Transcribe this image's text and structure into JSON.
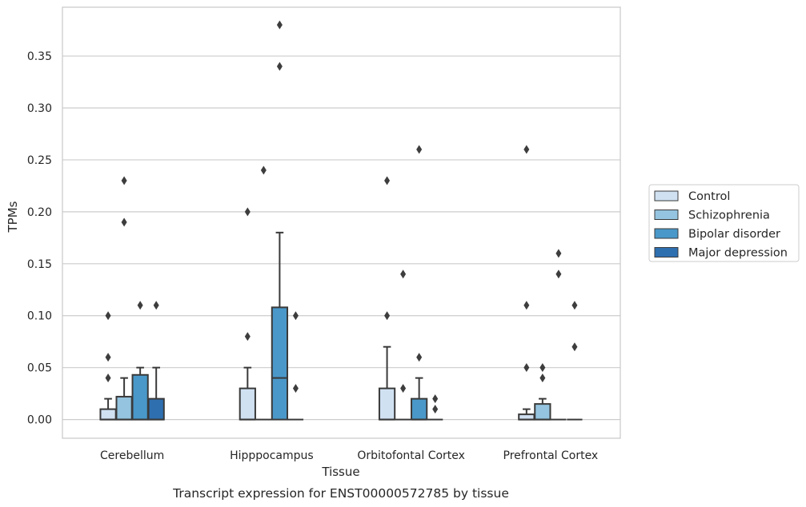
{
  "chart_data": {
    "type": "box",
    "xlabel": "Tissue",
    "ylabel": "TPMs",
    "caption": "Transcript expression for ENST00000572785 by tissue",
    "ylim": [
      -0.018,
      0.397
    ],
    "yticks": [
      0.0,
      0.05,
      0.1,
      0.15,
      0.2,
      0.25,
      0.3,
      0.35
    ],
    "ytick_labels": [
      "0.00",
      "0.05",
      "0.10",
      "0.15",
      "0.20",
      "0.25",
      "0.30",
      "0.35"
    ],
    "grid": "horizontal",
    "legend_position": "right",
    "categories": [
      "Cerebellum",
      "Hipppocampus",
      "Orbitofontal Cortex",
      "Prefrontal Cortex"
    ],
    "series": [
      {
        "name": "Control",
        "color": "#d0e1f2",
        "boxes": [
          {
            "q1": 0.0,
            "median": 0.0,
            "q3": 0.01,
            "whislo": 0.0,
            "whishi": 0.02,
            "fliers": [
              0.04,
              0.06,
              0.1
            ]
          },
          {
            "q1": 0.0,
            "median": 0.0,
            "q3": 0.03,
            "whislo": 0.0,
            "whishi": 0.05,
            "fliers": [
              0.08,
              0.2
            ]
          },
          {
            "q1": 0.0,
            "median": 0.0,
            "q3": 0.03,
            "whislo": 0.0,
            "whishi": 0.07,
            "fliers": [
              0.1,
              0.23
            ]
          },
          {
            "q1": 0.0,
            "median": 0.0,
            "q3": 0.005,
            "whislo": 0.0,
            "whishi": 0.01,
            "fliers": [
              0.05,
              0.11,
              0.26
            ]
          }
        ]
      },
      {
        "name": "Schizophrenia",
        "color": "#94c4df",
        "boxes": [
          {
            "q1": 0.0,
            "median": 0.0,
            "q3": 0.022,
            "whislo": 0.0,
            "whishi": 0.04,
            "fliers": [
              0.19,
              0.23
            ]
          },
          {
            "q1": 0.0,
            "median": 0.0,
            "q3": 0.0,
            "whislo": 0.0,
            "whishi": 0.0,
            "fliers": [
              0.24
            ]
          },
          {
            "q1": 0.0,
            "median": 0.0,
            "q3": 0.0,
            "whislo": 0.0,
            "whishi": 0.0,
            "fliers": [
              0.03,
              0.14
            ]
          },
          {
            "q1": 0.0,
            "median": 0.0,
            "q3": 0.015,
            "whislo": 0.0,
            "whishi": 0.02,
            "fliers": [
              0.04,
              0.05
            ]
          }
        ]
      },
      {
        "name": "Bipolar disorder",
        "color": "#4a98c9",
        "boxes": [
          {
            "q1": 0.0,
            "median": 0.0,
            "q3": 0.043,
            "whislo": 0.0,
            "whishi": 0.05,
            "fliers": [
              0.11
            ]
          },
          {
            "q1": 0.0,
            "median": 0.04,
            "q3": 0.108,
            "whislo": 0.0,
            "whishi": 0.18,
            "fliers": [
              0.34,
              0.38
            ]
          },
          {
            "q1": 0.0,
            "median": 0.0,
            "q3": 0.02,
            "whislo": 0.0,
            "whishi": 0.04,
            "fliers": [
              0.06,
              0.26
            ]
          },
          {
            "q1": 0.0,
            "median": 0.0,
            "q3": 0.0,
            "whislo": 0.0,
            "whishi": 0.0,
            "fliers": [
              0.14,
              0.16
            ]
          }
        ]
      },
      {
        "name": "Major depression",
        "color": "#2e6fb0",
        "boxes": [
          {
            "q1": 0.0,
            "median": 0.0,
            "q3": 0.02,
            "whislo": 0.0,
            "whishi": 0.05,
            "fliers": [
              0.11
            ]
          },
          {
            "q1": 0.0,
            "median": 0.0,
            "q3": 0.0,
            "whislo": 0.0,
            "whishi": 0.0,
            "fliers": [
              0.03,
              0.1
            ]
          },
          {
            "q1": 0.0,
            "median": 0.0,
            "q3": 0.0,
            "whislo": 0.0,
            "whishi": 0.0,
            "fliers": [
              0.01,
              0.02
            ]
          },
          {
            "q1": 0.0,
            "median": 0.0,
            "q3": 0.0,
            "whislo": 0.0,
            "whishi": 0.0,
            "fliers": [
              0.07,
              0.11
            ]
          }
        ]
      }
    ],
    "colors": {
      "grid": "#cccccc",
      "edge": "#3a3a3a",
      "axes_frame": "#cccccc"
    }
  }
}
